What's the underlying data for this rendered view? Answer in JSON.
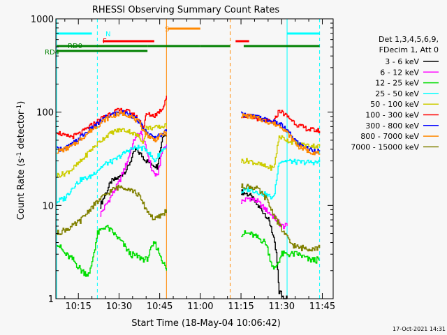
{
  "chart_data": {
    "type": "line",
    "title": "RHESSI Observing Summary Count Rates",
    "xlabel": "Start Time (18-May-04 10:06:42)",
    "ylabel": "Count Rate (s",
    "ylabel_sup": "-1",
    "ylabel_mid": " detector",
    "ylabel_end": ")",
    "x_ticks": [
      "10:15",
      "10:30",
      "10:45",
      "11:00",
      "11:15",
      "11:30",
      "11:45"
    ],
    "x_tick_minutes": [
      15,
      30,
      45,
      60,
      75,
      90,
      105
    ],
    "xlim_minutes": [
      6.7,
      109
    ],
    "y_scale": "log",
    "ylim": [
      1,
      1000
    ],
    "y_ticks": [
      "1",
      "10",
      "100",
      "1000"
    ],
    "y_tick_values": [
      1,
      10,
      100,
      1000
    ],
    "legend_header": [
      "Det 1,3,4,5,6,9,",
      "FDecim 1, Att 0"
    ],
    "legend_position": "right",
    "timestamp": "17-Oct-2021 14:31",
    "gaps_minutes": [
      [
        47.5,
        60
      ],
      [
        71,
        75
      ]
    ],
    "series": [
      {
        "name": "3 - 6 keV",
        "color": "#000000",
        "points": [
          [
            23,
            10
          ],
          [
            27,
            18
          ],
          [
            30,
            20
          ],
          [
            33,
            25
          ],
          [
            36,
            40
          ],
          [
            38,
            35
          ],
          [
            40,
            30
          ],
          [
            42,
            28
          ],
          [
            44,
            26
          ],
          [
            46,
            55
          ],
          [
            47.5,
            60
          ],
          [
            75,
            14
          ],
          [
            78,
            13
          ],
          [
            81,
            10
          ],
          [
            84,
            8
          ],
          [
            86,
            6
          ],
          [
            88,
            3
          ],
          [
            89,
            1.2
          ],
          [
            91,
            1
          ],
          [
            92,
            1
          ]
        ]
      },
      {
        "name": "6 - 12 keV",
        "color": "#ff00ff",
        "points": [
          [
            23,
            8
          ],
          [
            25,
            10
          ],
          [
            28,
            14
          ],
          [
            30,
            18
          ],
          [
            33,
            30
          ],
          [
            36,
            55
          ],
          [
            38,
            60
          ],
          [
            40,
            40
          ],
          [
            42,
            24
          ],
          [
            44,
            20
          ],
          [
            46,
            40
          ],
          [
            47.5,
            45
          ],
          [
            75,
            11
          ],
          [
            78,
            12
          ],
          [
            81,
            11
          ],
          [
            84,
            9
          ],
          [
            86,
            8
          ],
          [
            88,
            7
          ],
          [
            90,
            6
          ],
          [
            92,
            6
          ]
        ]
      },
      {
        "name": "12 - 25 keV",
        "color": "#00dd00",
        "points": [
          [
            7,
            4
          ],
          [
            10,
            3
          ],
          [
            13,
            2.6
          ],
          [
            16,
            2
          ],
          [
            19,
            1.8
          ],
          [
            22,
            5
          ],
          [
            25,
            6
          ],
          [
            28,
            5
          ],
          [
            31,
            4
          ],
          [
            34,
            3
          ],
          [
            37,
            2.8
          ],
          [
            40,
            2.6
          ],
          [
            43,
            4
          ],
          [
            45,
            3
          ],
          [
            47.5,
            2
          ],
          [
            75,
            5
          ],
          [
            78,
            5
          ],
          [
            81,
            4.5
          ],
          [
            84,
            4
          ],
          [
            87,
            2
          ],
          [
            90,
            3
          ],
          [
            93,
            3
          ],
          [
            96,
            3
          ],
          [
            100,
            2.6
          ],
          [
            104,
            2.6
          ]
        ]
      },
      {
        "name": "25 - 50 keV",
        "color": "#00ffff",
        "points": [
          [
            7,
            11
          ],
          [
            10,
            12
          ],
          [
            13,
            16
          ],
          [
            16,
            19
          ],
          [
            19,
            20
          ],
          [
            22,
            24
          ],
          [
            25,
            28
          ],
          [
            28,
            30
          ],
          [
            31,
            35
          ],
          [
            34,
            40
          ],
          [
            37,
            42
          ],
          [
            40,
            40
          ],
          [
            43,
            30
          ],
          [
            46,
            40
          ],
          [
            47.5,
            42
          ],
          [
            75,
            14
          ],
          [
            78,
            15
          ],
          [
            81,
            14
          ],
          [
            84,
            13
          ],
          [
            87,
            12
          ],
          [
            89,
            30
          ],
          [
            92,
            30
          ],
          [
            96,
            29
          ],
          [
            100,
            29
          ],
          [
            104,
            29
          ]
        ]
      },
      {
        "name": "50 - 100 keV",
        "color": "#cccc00",
        "points": [
          [
            7,
            21
          ],
          [
            10,
            22
          ],
          [
            13,
            25
          ],
          [
            16,
            30
          ],
          [
            19,
            38
          ],
          [
            22,
            46
          ],
          [
            25,
            55
          ],
          [
            28,
            62
          ],
          [
            31,
            65
          ],
          [
            34,
            62
          ],
          [
            37,
            55
          ],
          [
            39,
            48
          ],
          [
            40,
            68
          ],
          [
            43,
            68
          ],
          [
            46,
            70
          ],
          [
            47.5,
            72
          ],
          [
            75,
            30
          ],
          [
            78,
            30
          ],
          [
            81,
            28
          ],
          [
            84,
            26
          ],
          [
            87,
            25
          ],
          [
            89,
            55
          ],
          [
            92,
            50
          ],
          [
            96,
            45
          ],
          [
            100,
            44
          ],
          [
            104,
            43
          ]
        ]
      },
      {
        "name": "100 - 300 keV",
        "color": "#ff0000",
        "points": [
          [
            7,
            62
          ],
          [
            10,
            55
          ],
          [
            13,
            55
          ],
          [
            16,
            60
          ],
          [
            19,
            70
          ],
          [
            22,
            80
          ],
          [
            25,
            92
          ],
          [
            28,
            102
          ],
          [
            31,
            105
          ],
          [
            34,
            100
          ],
          [
            37,
            85
          ],
          [
            39,
            68
          ],
          [
            40,
            95
          ],
          [
            43,
            92
          ],
          [
            46,
            110
          ],
          [
            47.5,
            150
          ],
          [
            75,
            92
          ],
          [
            78,
            90
          ],
          [
            81,
            85
          ],
          [
            84,
            80
          ],
          [
            87,
            78
          ],
          [
            89,
            105
          ],
          [
            92,
            90
          ],
          [
            96,
            72
          ],
          [
            100,
            65
          ],
          [
            104,
            63
          ]
        ]
      },
      {
        "name": "300 - 800 keV",
        "color": "#0000ff",
        "points": [
          [
            7,
            40
          ],
          [
            10,
            41
          ],
          [
            13,
            46
          ],
          [
            16,
            55
          ],
          [
            19,
            64
          ],
          [
            22,
            75
          ],
          [
            25,
            88
          ],
          [
            28,
            96
          ],
          [
            31,
            100
          ],
          [
            34,
            95
          ],
          [
            37,
            80
          ],
          [
            40,
            60
          ],
          [
            43,
            52
          ],
          [
            46,
            60
          ],
          [
            47.5,
            62
          ],
          [
            75,
            95
          ],
          [
            78,
            92
          ],
          [
            81,
            88
          ],
          [
            84,
            83
          ],
          [
            87,
            78
          ],
          [
            90,
            72
          ],
          [
            93,
            58
          ],
          [
            96,
            46
          ],
          [
            100,
            40
          ],
          [
            104,
            38
          ]
        ]
      },
      {
        "name": "800 - 7000 keV",
        "color": "#ff8800",
        "points": [
          [
            7,
            38
          ],
          [
            10,
            40
          ],
          [
            13,
            44
          ],
          [
            16,
            52
          ],
          [
            19,
            62
          ],
          [
            22,
            72
          ],
          [
            25,
            84
          ],
          [
            28,
            92
          ],
          [
            31,
            97
          ],
          [
            34,
            92
          ],
          [
            37,
            78
          ],
          [
            40,
            58
          ],
          [
            43,
            50
          ],
          [
            46,
            58
          ],
          [
            47.5,
            60
          ],
          [
            75,
            92
          ],
          [
            78,
            90
          ],
          [
            81,
            86
          ],
          [
            84,
            80
          ],
          [
            87,
            75
          ],
          [
            90,
            70
          ],
          [
            93,
            55
          ],
          [
            96,
            43
          ],
          [
            100,
            38
          ],
          [
            104,
            36
          ]
        ]
      },
      {
        "name": "7000 - 15000 keV",
        "color": "#808000",
        "points": [
          [
            7,
            5
          ],
          [
            10,
            5.5
          ],
          [
            13,
            6
          ],
          [
            16,
            7
          ],
          [
            19,
            9
          ],
          [
            22,
            11
          ],
          [
            25,
            13
          ],
          [
            28,
            15
          ],
          [
            31,
            16
          ],
          [
            34,
            15
          ],
          [
            37,
            13
          ],
          [
            40,
            9
          ],
          [
            43,
            7
          ],
          [
            46,
            8
          ],
          [
            47.5,
            9
          ],
          [
            75,
            16
          ],
          [
            78,
            16
          ],
          [
            81,
            15
          ],
          [
            84,
            12
          ],
          [
            87,
            8
          ],
          [
            90,
            5.5
          ],
          [
            93,
            4
          ],
          [
            96,
            3.5
          ],
          [
            100,
            3.5
          ],
          [
            104,
            3.5
          ]
        ]
      }
    ],
    "flag_bars": [
      {
        "label": "",
        "color": "#00ffff",
        "segments": [
          [
            7,
            20
          ],
          [
            92,
            104
          ]
        ]
      },
      {
        "label": "N",
        "color": "#00ffff",
        "label_minute": 22.5
      },
      {
        "label": "F",
        "color": "#ff0000",
        "segments": [
          [
            24,
            43
          ],
          [
            73,
            78
          ]
        ],
        "label_minute": 22.5
      },
      {
        "label": "S",
        "color": "#ff8800",
        "segments": [
          [
            48,
            60
          ]
        ],
        "label_minute": 47.5
      },
      {
        "label": "RD0",
        "color": "#008000",
        "segments": [
          [
            7,
            40.5
          ],
          [
            40.5,
            60
          ],
          [
            60,
            71
          ],
          [
            76,
            104
          ]
        ],
        "label_minute": 10
      },
      {
        "label": "RD4",
        "color": "#008000",
        "segments": [
          [
            7,
            40.5
          ]
        ],
        "label_minute": 4
      }
    ],
    "vlines": [
      {
        "minute": 7,
        "color": "#00ffff",
        "style": "solid"
      },
      {
        "minute": 22,
        "color": "#00ffff",
        "style": "dashed"
      },
      {
        "minute": 47.5,
        "color": "#ff8800",
        "style": "solid"
      },
      {
        "minute": 71,
        "color": "#ff8800",
        "style": "dashed"
      },
      {
        "minute": 92,
        "color": "#00ffff",
        "style": "solid"
      },
      {
        "minute": 104,
        "color": "#00ffff",
        "style": "dashed"
      }
    ]
  }
}
